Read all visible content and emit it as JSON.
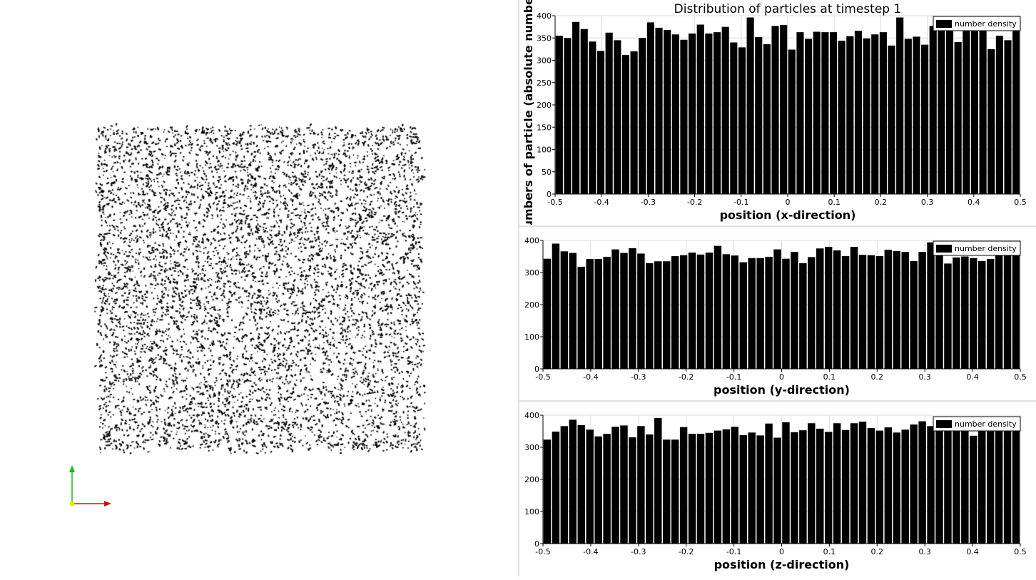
{
  "colors": {
    "bar": "#000000",
    "axis_x": "#d01010",
    "axis_y": "#16c016",
    "origin": "#e8e800"
  },
  "viewport": {
    "axes_icon": "xyz-orientation-axes-icon"
  },
  "chart_data": [
    {
      "type": "bar",
      "title": "Distribution of particles at timestep 1",
      "xlabel": "position (x-direction)",
      "ylabel": "numbers of particle (absolute numbe",
      "legend": "number density",
      "legend_position": "top-right",
      "xlim": [
        -0.5,
        0.5
      ],
      "ylim": [
        0,
        400
      ],
      "xticks": [
        "-0.5",
        "-0.4",
        "-0.3",
        "-0.2",
        "-0.1",
        "0",
        "0.1",
        "0.2",
        "0.3",
        "0.4",
        "0.5"
      ],
      "yticks": [
        "0",
        "50",
        "100",
        "150",
        "200",
        "250",
        "300",
        "350",
        "400"
      ],
      "grid": true,
      "values": [
        355,
        350,
        386,
        370,
        342,
        321,
        362,
        345,
        312,
        320,
        350,
        385,
        373,
        368,
        358,
        346,
        360,
        380,
        360,
        363,
        375,
        340,
        329,
        396,
        352,
        336,
        377,
        379,
        324,
        363,
        348,
        364,
        363,
        363,
        344,
        354,
        366,
        349,
        358,
        363,
        333,
        396,
        348,
        353,
        335,
        377,
        370,
        367,
        341,
        374,
        374,
        370,
        325,
        355,
        345,
        370
      ]
    },
    {
      "type": "bar",
      "xlabel": "position (y-direction)",
      "legend": "number density",
      "legend_position": "top-right",
      "xlim": [
        -0.5,
        0.5
      ],
      "ylim": [
        0,
        400
      ],
      "xticks": [
        "-0.5",
        "-0.4",
        "-0.3",
        "-0.2",
        "-0.1",
        "0",
        "0.1",
        "0.2",
        "0.3",
        "0.4",
        "0.5"
      ],
      "yticks": [
        "0",
        "100",
        "200",
        "300",
        "400"
      ],
      "grid": true,
      "values": [
        343,
        390,
        366,
        361,
        318,
        342,
        342,
        349,
        372,
        361,
        376,
        359,
        329,
        335,
        335,
        351,
        354,
        362,
        356,
        362,
        383,
        357,
        353,
        332,
        345,
        345,
        349,
        372,
        343,
        364,
        329,
        348,
        375,
        380,
        369,
        351,
        380,
        355,
        354,
        351,
        371,
        367,
        364,
        336,
        364,
        394,
        373,
        328,
        347,
        350,
        345,
        336,
        342,
        360,
        359,
        376
      ]
    },
    {
      "type": "bar",
      "xlabel": "position (z-direction)",
      "legend": "number density",
      "legend_position": "top-right",
      "xlim": [
        -0.5,
        0.5
      ],
      "ylim": [
        0,
        400
      ],
      "xticks": [
        "-0.5",
        "-0.4",
        "-0.3",
        "-0.2",
        "-0.1",
        "0",
        "0.1",
        "0.2",
        "0.3",
        "0.4",
        "0.5"
      ],
      "yticks": [
        "0",
        "100",
        "200",
        "300",
        "400"
      ],
      "grid": true,
      "values": [
        324,
        349,
        366,
        386,
        369,
        355,
        334,
        342,
        364,
        368,
        331,
        366,
        340,
        391,
        324,
        324,
        363,
        342,
        342,
        345,
        352,
        356,
        364,
        338,
        346,
        337,
        374,
        330,
        378,
        347,
        353,
        375,
        358,
        348,
        375,
        354,
        375,
        380,
        360,
        352,
        362,
        346,
        355,
        371,
        381,
        366,
        368,
        362,
        361,
        350,
        336,
        363,
        362,
        374,
        370,
        372
      ]
    }
  ]
}
